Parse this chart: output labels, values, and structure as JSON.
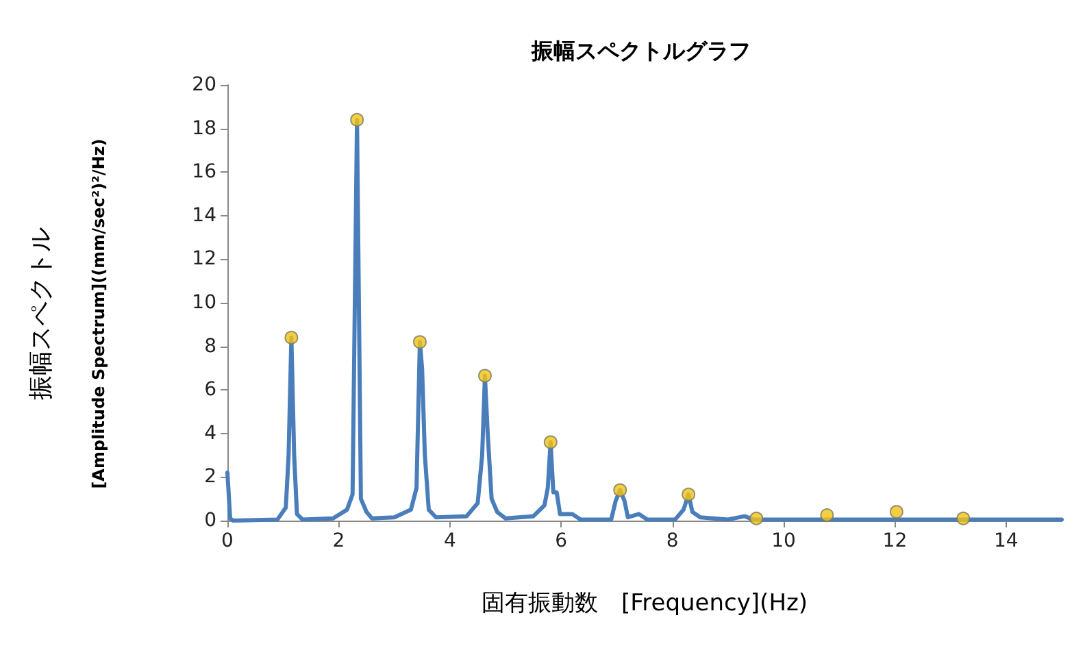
{
  "chart_data": {
    "type": "line",
    "title": "振幅スペクトルグラフ",
    "xlabel": "固有振動数　[Frequency](Hz)",
    "ylabel": "振幅スペクトル\n[Amplitude Spectrum]((mm/sec²)²/Hz)",
    "xlim": [
      0,
      15
    ],
    "xticks": [
      0,
      2,
      4,
      6,
      8,
      10,
      12,
      14
    ],
    "ylim": [
      0,
      20
    ],
    "yticks": [
      0,
      2,
      4,
      6,
      8,
      10,
      12,
      14,
      16,
      18,
      20
    ],
    "grid": false,
    "series": [
      {
        "color": "#4a7ebb",
        "marker": "none",
        "line_style": "solid",
        "x": [
          0,
          0.05,
          0.1,
          0.9,
          1.05,
          1.1,
          1.15,
          1.2,
          1.25,
          1.35,
          1.9,
          2.15,
          2.25,
          2.33,
          2.4,
          2.5,
          2.6,
          3.0,
          3.3,
          3.4,
          3.46,
          3.5,
          3.55,
          3.62,
          3.75,
          4.3,
          4.5,
          4.58,
          4.63,
          4.68,
          4.75,
          4.85,
          5.0,
          5.5,
          5.7,
          5.76,
          5.81,
          5.86,
          5.92,
          5.98,
          6.2,
          6.35,
          6.9,
          6.98,
          7.06,
          7.14,
          7.2,
          7.4,
          7.55,
          8.05,
          8.2,
          8.29,
          8.36,
          8.5,
          9.0,
          9.3,
          9.45,
          11,
          13,
          15
        ],
        "values": [
          2.2,
          0.1,
          0,
          0.05,
          0.6,
          3,
          8.4,
          3,
          0.3,
          0.05,
          0.1,
          0.5,
          1.2,
          18.4,
          1,
          0.4,
          0.1,
          0.15,
          0.5,
          1.5,
          8.2,
          7,
          3,
          0.5,
          0.15,
          0.2,
          0.8,
          3,
          6.65,
          4,
          1,
          0.4,
          0.1,
          0.2,
          0.7,
          1.5,
          3.6,
          1.3,
          1.3,
          0.3,
          0.3,
          0.05,
          0.05,
          0.9,
          1.4,
          0.9,
          0.15,
          0.3,
          0.05,
          0.05,
          0.5,
          1.2,
          0.4,
          0.15,
          0.05,
          0.2,
          0.05,
          0.05,
          0.05,
          0.05
        ]
      },
      {
        "type": "scatter",
        "color": "#f2c314",
        "marker": "circle",
        "x": [
          1.15,
          2.33,
          3.46,
          4.63,
          5.81,
          7.06,
          8.29,
          9.51,
          10.78,
          12.03,
          13.23
        ],
        "values": [
          8.4,
          18.4,
          8.2,
          6.65,
          3.6,
          1.4,
          1.2,
          0.1,
          0.25,
          0.4,
          0.1
        ]
      }
    ]
  }
}
